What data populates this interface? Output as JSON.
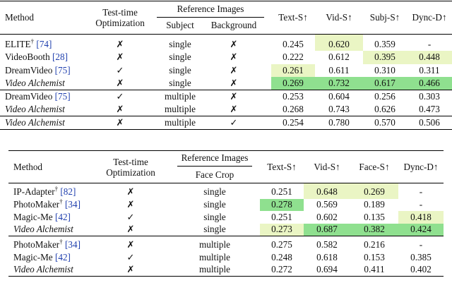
{
  "table1": {
    "headers": {
      "method": "Method",
      "optimization": [
        "Test-time",
        "Optimization"
      ],
      "reference_images": "Reference Images",
      "subject": "Subject",
      "background": "Background",
      "text_s": "Text-S↑",
      "vid_s": "Vid-S↑",
      "subj_s": "Subj-S↑",
      "dync_d": "Dync-D↑"
    },
    "groups": [
      [
        {
          "method": "ELITE",
          "dagger": "†",
          "ref": "[74]",
          "italic": false,
          "opt": "✗",
          "subject": "single",
          "background": "✗",
          "text_s": "0.245",
          "vid_s": "0.620",
          "subj_s": "0.359",
          "dync_d": "-",
          "hl": [
            "",
            "light",
            "",
            ""
          ]
        },
        {
          "method": "VideoBooth",
          "dagger": "",
          "ref": "[28]",
          "italic": false,
          "opt": "✗",
          "subject": "single",
          "background": "✗",
          "text_s": "0.222",
          "vid_s": "0.612",
          "subj_s": "0.395",
          "dync_d": "0.448",
          "hl": [
            "",
            "",
            "light",
            "light"
          ]
        },
        {
          "method": "DreamVideo",
          "dagger": "",
          "ref": "[75]",
          "italic": false,
          "opt": "✓",
          "subject": "single",
          "background": "✗",
          "text_s": "0.261",
          "vid_s": "0.611",
          "subj_s": "0.310",
          "dync_d": "0.311",
          "hl": [
            "light",
            "",
            "",
            ""
          ]
        },
        {
          "method": "Video Alchemist",
          "dagger": "",
          "ref": "",
          "italic": true,
          "opt": "✗",
          "subject": "single",
          "background": "✗",
          "text_s": "0.269",
          "vid_s": "0.732",
          "subj_s": "0.617",
          "dync_d": "0.466",
          "hl": [
            "green",
            "green",
            "green",
            "green"
          ]
        }
      ],
      [
        {
          "method": "DreamVideo",
          "dagger": "",
          "ref": "[75]",
          "italic": false,
          "opt": "✓",
          "subject": "multiple",
          "background": "✗",
          "text_s": "0.253",
          "vid_s": "0.604",
          "subj_s": "0.256",
          "dync_d": "0.303",
          "hl": [
            "",
            "",
            "",
            ""
          ]
        },
        {
          "method": "Video Alchemist",
          "dagger": "",
          "ref": "",
          "italic": true,
          "opt": "✗",
          "subject": "multiple",
          "background": "✗",
          "text_s": "0.268",
          "vid_s": "0.743",
          "subj_s": "0.626",
          "dync_d": "0.473",
          "hl": [
            "",
            "",
            "",
            ""
          ]
        }
      ],
      [
        {
          "method": "Video Alchemist",
          "dagger": "",
          "ref": "",
          "italic": true,
          "opt": "✗",
          "subject": "multiple",
          "background": "✓",
          "text_s": "0.254",
          "vid_s": "0.780",
          "subj_s": "0.570",
          "dync_d": "0.506",
          "hl": [
            "",
            "",
            "",
            ""
          ]
        }
      ]
    ]
  },
  "table2": {
    "headers": {
      "method": "Method",
      "optimization": [
        "Test-time",
        "Optimization"
      ],
      "reference_images": "Reference Images",
      "face_crop": "Face Crop",
      "text_s": "Text-S↑",
      "vid_s": "Vid-S↑",
      "face_s": "Face-S↑",
      "dync_d": "Dync-D↑"
    },
    "groups": [
      [
        {
          "method": "IP-Adapter",
          "dagger": "†",
          "ref": "[82]",
          "italic": false,
          "opt": "✗",
          "face": "single",
          "text_s": "0.251",
          "vid_s": "0.648",
          "face_s": "0.269",
          "dync_d": "-",
          "hl": [
            "",
            "light",
            "light",
            ""
          ]
        },
        {
          "method": "PhotoMaker",
          "dagger": "†",
          "ref": "[34]",
          "italic": false,
          "opt": "✗",
          "face": "single",
          "text_s": "0.278",
          "vid_s": "0.569",
          "face_s": "0.189",
          "dync_d": "-",
          "hl": [
            "green",
            "",
            "",
            ""
          ]
        },
        {
          "method": "Magic-Me",
          "dagger": "",
          "ref": "[42]",
          "italic": false,
          "opt": "✓",
          "face": "single",
          "text_s": "0.251",
          "vid_s": "0.602",
          "face_s": "0.135",
          "dync_d": "0.418",
          "hl": [
            "",
            "",
            "",
            "light"
          ]
        },
        {
          "method": "Video Alchemist",
          "dagger": "",
          "ref": "",
          "italic": true,
          "opt": "✗",
          "face": "single",
          "text_s": "0.273",
          "vid_s": "0.687",
          "face_s": "0.382",
          "dync_d": "0.424",
          "hl": [
            "light",
            "green",
            "green",
            "green"
          ]
        }
      ],
      [
        {
          "method": "PhotoMaker",
          "dagger": "†",
          "ref": "[34]",
          "italic": false,
          "opt": "✗",
          "face": "multiple",
          "text_s": "0.275",
          "vid_s": "0.582",
          "face_s": "0.216",
          "dync_d": "-",
          "hl": [
            "",
            "",
            "",
            ""
          ]
        },
        {
          "method": "Magic-Me",
          "dagger": "",
          "ref": "[42]",
          "italic": false,
          "opt": "✓",
          "face": "multiple",
          "text_s": "0.248",
          "vid_s": "0.618",
          "face_s": "0.153",
          "dync_d": "0.385",
          "hl": [
            "",
            "",
            "",
            ""
          ]
        },
        {
          "method": "Video Alchemist",
          "dagger": "",
          "ref": "",
          "italic": true,
          "opt": "✗",
          "face": "multiple",
          "text_s": "0.272",
          "vid_s": "0.694",
          "face_s": "0.411",
          "dync_d": "0.402",
          "hl": [
            "",
            "",
            "",
            ""
          ]
        }
      ]
    ]
  }
}
